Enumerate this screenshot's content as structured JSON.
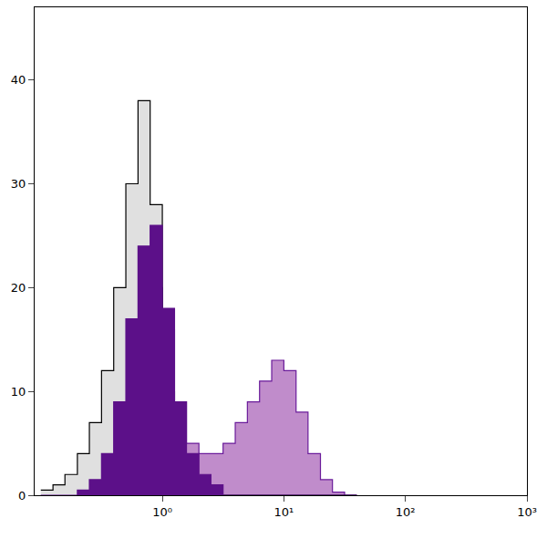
{
  "chart_data": {
    "type": "histogram",
    "log": "x",
    "grid": false,
    "bins": [
      0.1,
      0.126,
      0.158,
      0.2,
      0.251,
      0.316,
      0.398,
      0.501,
      0.631,
      0.794,
      1,
      1.26,
      1.58,
      2,
      2.51,
      3.16,
      3.98,
      5.01,
      6.31,
      7.94,
      10,
      12.6,
      15.8,
      20,
      25.1,
      31.6,
      39.8
    ],
    "series": [
      {
        "color": "#c08ccb",
        "values": [
          0,
          0,
          0,
          0,
          0,
          2,
          5,
          12,
          18,
          20,
          16,
          9,
          5,
          4,
          4,
          5,
          7,
          9,
          11,
          13,
          12,
          8,
          4,
          1.5,
          0.3,
          0
        ]
      },
      {
        "color": "#e0e0e0",
        "values": [
          0.5,
          1,
          2,
          4,
          7,
          12,
          20,
          30,
          38,
          28,
          10,
          3,
          1,
          0,
          0,
          0,
          0,
          0,
          0,
          0,
          0,
          0,
          0,
          0,
          0,
          0
        ]
      },
      {
        "color": "#5c1089",
        "values": [
          0,
          0,
          0,
          0.5,
          1.5,
          4,
          9,
          17,
          24,
          26,
          18,
          9,
          4,
          2,
          1,
          0,
          0,
          0,
          0,
          0,
          0,
          0,
          0,
          0,
          0,
          0
        ]
      }
    ],
    "xlim": [
      0.089,
      1000
    ],
    "xticks": [
      {
        "value": 1,
        "label": "10⁰"
      },
      {
        "value": 10,
        "label": "10¹"
      },
      {
        "value": 100,
        "label": "10²"
      },
      {
        "value": 1000,
        "label": "10³"
      }
    ],
    "ylim": [
      0,
      47
    ],
    "yticks": [
      0,
      10,
      20,
      30,
      40
    ]
  }
}
